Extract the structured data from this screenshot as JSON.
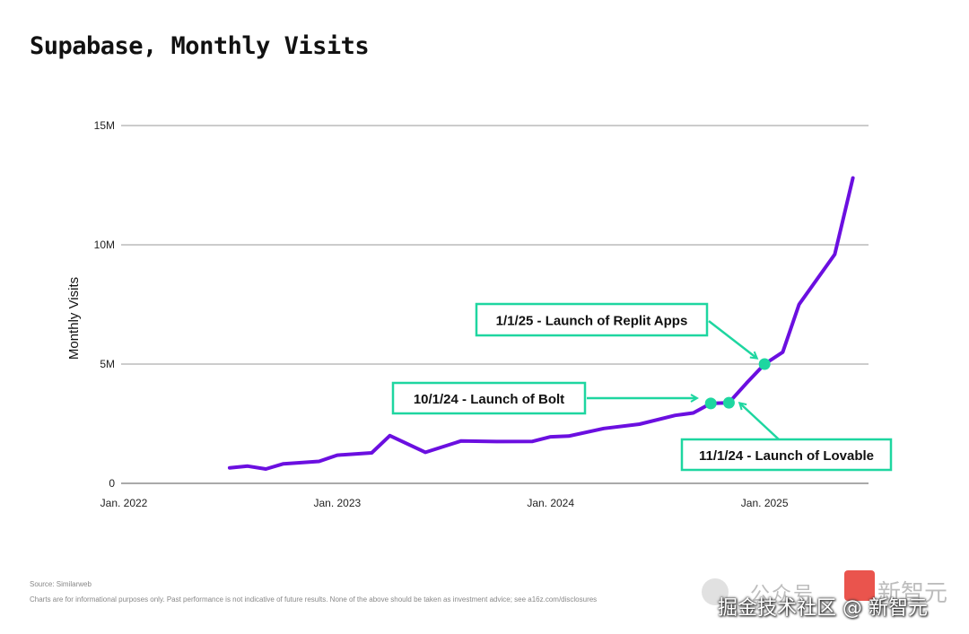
{
  "title": "Supabase, Monthly Visits",
  "chart_data": {
    "type": "line",
    "ylabel": "Monthly Visits",
    "ylim": [
      0,
      15000000
    ],
    "yticks": [
      0,
      5000000,
      10000000,
      15000000
    ],
    "ytick_labels": [
      "0",
      "5M",
      "10M",
      "15M"
    ],
    "xlim": [
      "2022-01-01",
      "2025-06-01"
    ],
    "xticks": [
      "2022-01-01",
      "2023-01-01",
      "2024-01-01",
      "2025-01-01"
    ],
    "xtick_labels": [
      "Jan. 2022",
      "Jan. 2023",
      "Jan. 2024",
      "Jan. 2025"
    ],
    "grid": "horizontal",
    "line_color": "#6b0fe0",
    "accent_color": "#1ed6a0",
    "series": [
      {
        "points": [
          [
            "2022-07-01",
            650000
          ],
          [
            "2022-08-01",
            720000
          ],
          [
            "2022-09-01",
            600000
          ],
          [
            "2022-10-01",
            820000
          ],
          [
            "2022-12-01",
            920000
          ],
          [
            "2023-01-01",
            1180000
          ],
          [
            "2023-03-01",
            1280000
          ],
          [
            "2023-04-01",
            2000000
          ],
          [
            "2023-06-01",
            1300000
          ],
          [
            "2023-08-01",
            1780000
          ],
          [
            "2023-10-01",
            1750000
          ],
          [
            "2023-12-01",
            1760000
          ],
          [
            "2024-01-01",
            1950000
          ],
          [
            "2024-02-01",
            1980000
          ],
          [
            "2024-04-01",
            2300000
          ],
          [
            "2024-06-01",
            2480000
          ],
          [
            "2024-08-01",
            2850000
          ],
          [
            "2024-09-01",
            2950000
          ],
          [
            "2024-10-01",
            3350000
          ],
          [
            "2024-11-01",
            3380000
          ],
          [
            "2024-12-01",
            4200000
          ],
          [
            "2025-01-01",
            5000000
          ],
          [
            "2025-02-01",
            5500000
          ],
          [
            "2025-03-01",
            7500000
          ],
          [
            "2025-05-01",
            9600000
          ],
          [
            "2025-06-01",
            12800000
          ]
        ]
      }
    ],
    "annotations": [
      {
        "label": "1/1/25 - Launch of Replit Apps",
        "date": "2025-01-01",
        "value": 5000000
      },
      {
        "label": "10/1/24  - Launch of Bolt",
        "date": "2024-10-01",
        "value": 3350000
      },
      {
        "label": "11/1/24 - Launch of Lovable",
        "date": "2024-11-01",
        "value": 3380000
      }
    ]
  },
  "footer": {
    "source": "Source: Similarweb",
    "disclaimer": "Charts are for informational purposes only. Past performance is not indicative of future results. None of the above should be taken as investment advice; see a16z.com/disclosures"
  },
  "watermark": {
    "faint": "公众号",
    "faint2": "新智元",
    "main": "掘金技术社区 @ 新智元"
  }
}
